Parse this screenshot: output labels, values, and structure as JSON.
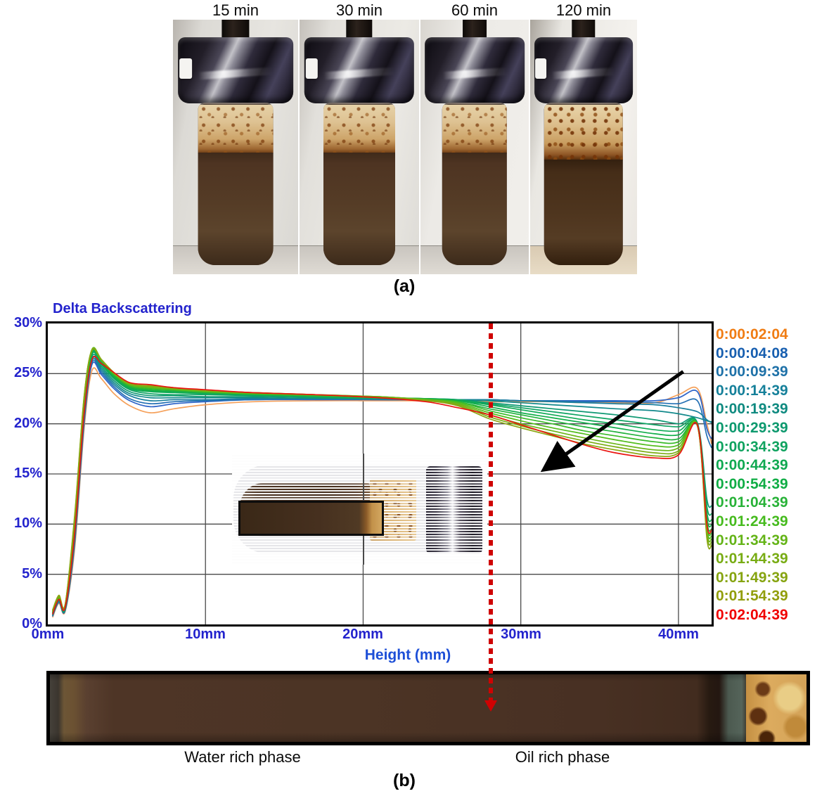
{
  "section_a": {
    "caption": "(a)",
    "photo_labels": [
      "15 min",
      "30 min",
      "60 min",
      "120 min"
    ],
    "photo_description": "glass vial with chrome cap, tan emulsion foam layer over dark brown liquid"
  },
  "chart": {
    "title": "Delta Backscattering",
    "xlabel": "Height (mm)",
    "y_ticks": [
      "30%",
      "25%",
      "20%",
      "15%",
      "10%",
      "5%",
      "0%"
    ],
    "x_ticks": [
      "0mm",
      "10mm",
      "20mm",
      "30mm",
      "40mm"
    ],
    "legend": [
      {
        "label": "0:00:02:04",
        "color": "#f07d14"
      },
      {
        "label": "0:00:04:08",
        "color": "#185fb0"
      },
      {
        "label": "0:00:09:39",
        "color": "#1e71a8"
      },
      {
        "label": "0:00:14:39",
        "color": "#15809a"
      },
      {
        "label": "0:00:19:39",
        "color": "#0f8a80"
      },
      {
        "label": "0:00:29:39",
        "color": "#0d996e"
      },
      {
        "label": "0:00:34:39",
        "color": "#0fa35f"
      },
      {
        "label": "0:00:44:39",
        "color": "#10a951"
      },
      {
        "label": "0:00:54:39",
        "color": "#10ad45"
      },
      {
        "label": "0:01:04:39",
        "color": "#28b238"
      },
      {
        "label": "0:01:24:39",
        "color": "#46bb1e"
      },
      {
        "label": "0:01:34:39",
        "color": "#64b417"
      },
      {
        "label": "0:01:44:39",
        "color": "#78ac13"
      },
      {
        "label": "0:01:49:39",
        "color": "#86a410"
      },
      {
        "label": "0:01:54:39",
        "color": "#929e0c"
      },
      {
        "label": "0:02:04:39",
        "color": "#f00000"
      }
    ],
    "accent_blue": "#2323cd",
    "dashed_line_color": "#cf0202"
  },
  "chart_data": {
    "type": "line",
    "title": "Delta Backscattering",
    "xlabel": "Height (mm)",
    "ylabel": "Delta Backscattering (%)",
    "xlim": [
      0,
      42.1
    ],
    "ylim": [
      0,
      30
    ],
    "x_gridlines_mm": [
      10,
      20,
      30,
      40
    ],
    "y_gridlines_pct": [
      5,
      10,
      15,
      20,
      25
    ],
    "legend_position": "right",
    "x": [
      0.3,
      0.7,
      1.1,
      1.7,
      2.3,
      2.8,
      3.4,
      4.2,
      5.2,
      6.5,
      8,
      10,
      13,
      17,
      21,
      24,
      26,
      28,
      30,
      32,
      34,
      36,
      38.5,
      40,
      41.2,
      41.8,
      42.1
    ],
    "series": [
      {
        "name": "0:00:02:04",
        "color": "#f5a05a",
        "values": [
          0.7,
          2.1,
          1.3,
          7.5,
          19.5,
          25.3,
          24.5,
          23.0,
          21.8,
          21.1,
          21.5,
          21.9,
          22.2,
          22.3,
          22.3,
          22.3,
          22.3,
          22.2,
          22.2,
          22.2,
          22.1,
          22.1,
          22.1,
          22.9,
          23.5,
          20.0,
          18.0
        ]
      },
      {
        "name": "0:00:04:08",
        "color": "#2e64c8",
        "values": [
          0.8,
          2.2,
          1.4,
          8.0,
          20.0,
          25.9,
          24.9,
          23.5,
          22.3,
          21.7,
          22.0,
          22.2,
          22.4,
          22.4,
          22.4,
          22.4,
          22.4,
          22.4,
          22.3,
          22.3,
          22.3,
          22.3,
          22.3,
          22.6,
          23.2,
          19.5,
          18.5
        ]
      },
      {
        "name": "0:00:09:39",
        "color": "#2470b4",
        "values": [
          0.8,
          2.3,
          1.4,
          8.2,
          20.3,
          26.1,
          25.1,
          23.7,
          22.5,
          22.0,
          22.2,
          22.3,
          22.4,
          22.5,
          22.4,
          22.4,
          22.4,
          22.4,
          22.3,
          22.3,
          22.2,
          22.2,
          22.1,
          22.0,
          22.3,
          18.8,
          17.6
        ]
      },
      {
        "name": "0:00:14:39",
        "color": "#1a7f9e",
        "values": [
          0.9,
          2.3,
          1.5,
          8.5,
          20.6,
          26.3,
          25.3,
          23.9,
          22.8,
          22.3,
          22.4,
          22.4,
          22.5,
          22.5,
          22.5,
          22.4,
          22.4,
          22.4,
          22.3,
          22.2,
          22.1,
          22.0,
          21.9,
          21.6,
          21.2,
          20.4,
          20.1
        ]
      },
      {
        "name": "0:00:19:39",
        "color": "#12898b",
        "values": [
          0.9,
          2.4,
          1.5,
          8.8,
          20.9,
          26.5,
          25.5,
          24.1,
          23.0,
          22.6,
          22.6,
          22.6,
          22.6,
          22.5,
          22.5,
          22.5,
          22.4,
          22.3,
          22.1,
          21.9,
          21.7,
          21.5,
          21.3,
          21.0,
          20.6,
          20.3,
          20.2
        ]
      },
      {
        "name": "0:00:29:39",
        "color": "#0f9973",
        "values": [
          1.0,
          2.4,
          1.6,
          9.0,
          21.1,
          26.7,
          25.7,
          24.3,
          23.2,
          22.8,
          22.8,
          22.7,
          22.7,
          22.6,
          22.5,
          22.5,
          22.4,
          22.1,
          21.8,
          21.5,
          21.2,
          20.9,
          20.4,
          20.0,
          20.1,
          12.5,
          11.8
        ]
      },
      {
        "name": "0:00:34:39",
        "color": "#10a464",
        "values": [
          1.0,
          2.5,
          1.6,
          9.2,
          21.3,
          26.9,
          25.9,
          24.5,
          23.4,
          23.0,
          22.9,
          22.9,
          22.8,
          22.7,
          22.6,
          22.5,
          22.4,
          22.0,
          21.6,
          21.2,
          20.8,
          20.4,
          19.9,
          19.7,
          20.0,
          11.8,
          11.0
        ]
      },
      {
        "name": "0:00:44:39",
        "color": "#10aa56",
        "values": [
          1.1,
          2.5,
          1.7,
          9.4,
          21.5,
          27.0,
          26.0,
          24.6,
          23.5,
          23.2,
          23.1,
          23.0,
          22.9,
          22.7,
          22.6,
          22.5,
          22.3,
          21.9,
          21.4,
          20.9,
          20.4,
          20.0,
          19.4,
          19.3,
          20.0,
          11.2,
          10.4
        ]
      },
      {
        "name": "0:00:54:39",
        "color": "#11ae4a",
        "values": [
          1.1,
          2.6,
          1.7,
          9.6,
          21.7,
          27.1,
          26.1,
          24.7,
          23.6,
          23.3,
          23.2,
          23.1,
          22.9,
          22.8,
          22.6,
          22.5,
          22.3,
          21.7,
          21.1,
          20.6,
          20.1,
          19.6,
          19.0,
          18.9,
          19.9,
          10.7,
          9.9
        ]
      },
      {
        "name": "0:01:04:39",
        "color": "#22b23c",
        "values": [
          1.2,
          2.6,
          1.8,
          9.8,
          21.9,
          27.2,
          26.2,
          24.8,
          23.7,
          23.4,
          23.3,
          23.1,
          23.0,
          22.8,
          22.6,
          22.5,
          22.2,
          21.5,
          20.9,
          20.3,
          19.7,
          19.2,
          18.6,
          18.5,
          19.9,
          10.3,
          9.5
        ]
      },
      {
        "name": "0:01:24:39",
        "color": "#39ba28",
        "values": [
          1.2,
          2.7,
          1.8,
          10.0,
          22.1,
          27.3,
          26.3,
          24.9,
          23.8,
          23.5,
          23.4,
          23.2,
          23.0,
          22.8,
          22.7,
          22.4,
          22.2,
          21.3,
          20.6,
          20.0,
          19.3,
          18.8,
          18.2,
          18.2,
          19.9,
          9.9,
          9.1
        ]
      },
      {
        "name": "0:01:34:39",
        "color": "#52bd1c",
        "values": [
          1.3,
          2.7,
          1.9,
          10.2,
          22.3,
          27.4,
          26.4,
          25.0,
          23.9,
          23.6,
          23.4,
          23.2,
          23.0,
          22.9,
          22.7,
          22.4,
          22.1,
          21.1,
          20.3,
          19.6,
          19.0,
          18.4,
          17.8,
          17.9,
          19.9,
          9.6,
          8.8
        ]
      },
      {
        "name": "0:01:44:39",
        "color": "#6ab618",
        "values": [
          1.3,
          2.8,
          1.9,
          10.4,
          22.5,
          27.4,
          26.4,
          25.0,
          23.9,
          23.7,
          23.5,
          23.3,
          23.1,
          22.9,
          22.7,
          22.4,
          22.0,
          20.9,
          20.0,
          19.3,
          18.6,
          18.0,
          17.4,
          17.6,
          19.8,
          9.3,
          8.5
        ]
      },
      {
        "name": "0:01:49:39",
        "color": "#7cae14",
        "values": [
          1.4,
          2.8,
          2.0,
          10.6,
          22.6,
          27.3,
          26.4,
          25.0,
          24.0,
          23.7,
          23.5,
          23.3,
          23.1,
          22.9,
          22.6,
          22.3,
          21.9,
          20.7,
          19.8,
          19.0,
          18.3,
          17.7,
          17.1,
          17.3,
          19.8,
          9.0,
          8.2
        ]
      },
      {
        "name": "0:01:54:39",
        "color": "#8aa612",
        "values": [
          1.4,
          2.9,
          2.0,
          10.8,
          22.7,
          27.3,
          26.4,
          25.1,
          24.0,
          23.8,
          23.6,
          23.3,
          23.1,
          22.9,
          22.6,
          22.3,
          21.8,
          20.5,
          19.6,
          18.8,
          18.0,
          17.4,
          16.8,
          17.1,
          19.8,
          8.6,
          7.9
        ]
      },
      {
        "name": "0:02:04:39",
        "color": "#ea1410",
        "values": [
          1.0,
          2.5,
          1.7,
          9.0,
          21.0,
          26.4,
          26.0,
          25.1,
          24.1,
          23.9,
          23.6,
          23.4,
          23.1,
          22.9,
          22.6,
          22.2,
          21.6,
          20.9,
          19.9,
          18.9,
          17.9,
          17.1,
          16.6,
          16.9,
          19.9,
          10.0,
          9.4
        ]
      }
    ],
    "annotations": {
      "time_arrow": {
        "from": [
          40.3,
          25.2
        ],
        "to": [
          31.8,
          15.8
        ],
        "color": "#000000"
      },
      "dashed_vertical_line_mm": 28.1
    }
  },
  "section_b": {
    "caption": "(b)",
    "left_label": "Water rich phase",
    "right_label": "Oil rich phase"
  }
}
